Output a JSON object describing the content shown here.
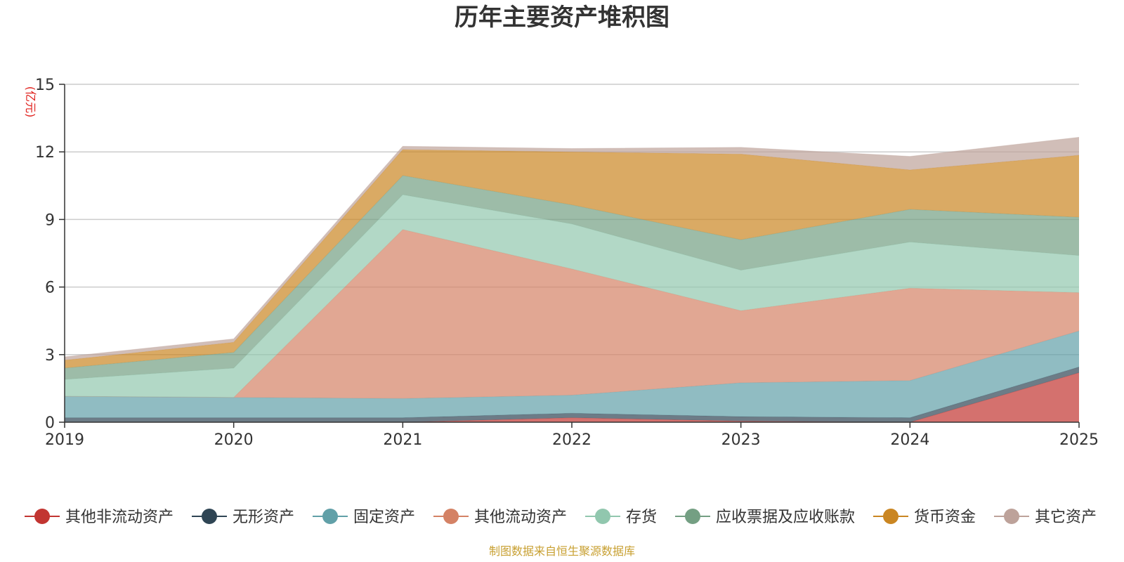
{
  "chart_data": {
    "type": "area",
    "stacked": true,
    "title": "历年主要资产堆积图",
    "ylabel": "(亿元)",
    "source": "制图数据来自恒生聚源数据库",
    "x": [
      "2019",
      "2020",
      "2021",
      "2022",
      "2023",
      "2024",
      "2025"
    ],
    "ylim": [
      0,
      15
    ],
    "yticks": [
      "0",
      "3",
      "6",
      "9",
      "12",
      "15"
    ],
    "grid": true,
    "legend_position": "bottom",
    "series": [
      {
        "name": "其他非流动资产",
        "color": "#c23531",
        "values": [
          0.0,
          0.0,
          0.0,
          0.2,
          0.05,
          0.0,
          2.2
        ]
      },
      {
        "name": "无形资产",
        "color": "#2f4554",
        "values": [
          0.2,
          0.2,
          0.2,
          0.2,
          0.2,
          0.2,
          0.25
        ]
      },
      {
        "name": "固定资产",
        "color": "#61a0a8",
        "values": [
          0.95,
          0.9,
          0.85,
          0.8,
          1.5,
          1.65,
          1.6
        ]
      },
      {
        "name": "其他流动资产",
        "color": "#d48265",
        "values": [
          0.0,
          0.0,
          7.5,
          5.6,
          3.2,
          4.1,
          1.7
        ]
      },
      {
        "name": "存货",
        "color": "#91c7ae",
        "values": [
          0.75,
          1.3,
          1.55,
          2.0,
          1.8,
          2.05,
          1.65
        ]
      },
      {
        "name": "应收票据及应收账款",
        "color": "#749f83",
        "values": [
          0.5,
          0.7,
          0.85,
          0.85,
          1.35,
          1.45,
          1.7
        ]
      },
      {
        "name": "货币资金",
        "color": "#ca8622",
        "values": [
          0.35,
          0.45,
          1.15,
          2.35,
          3.8,
          1.75,
          2.75
        ]
      },
      {
        "name": "其它资产",
        "color": "#bda29a",
        "values": [
          0.15,
          0.15,
          0.15,
          0.15,
          0.3,
          0.6,
          0.8
        ]
      }
    ]
  }
}
